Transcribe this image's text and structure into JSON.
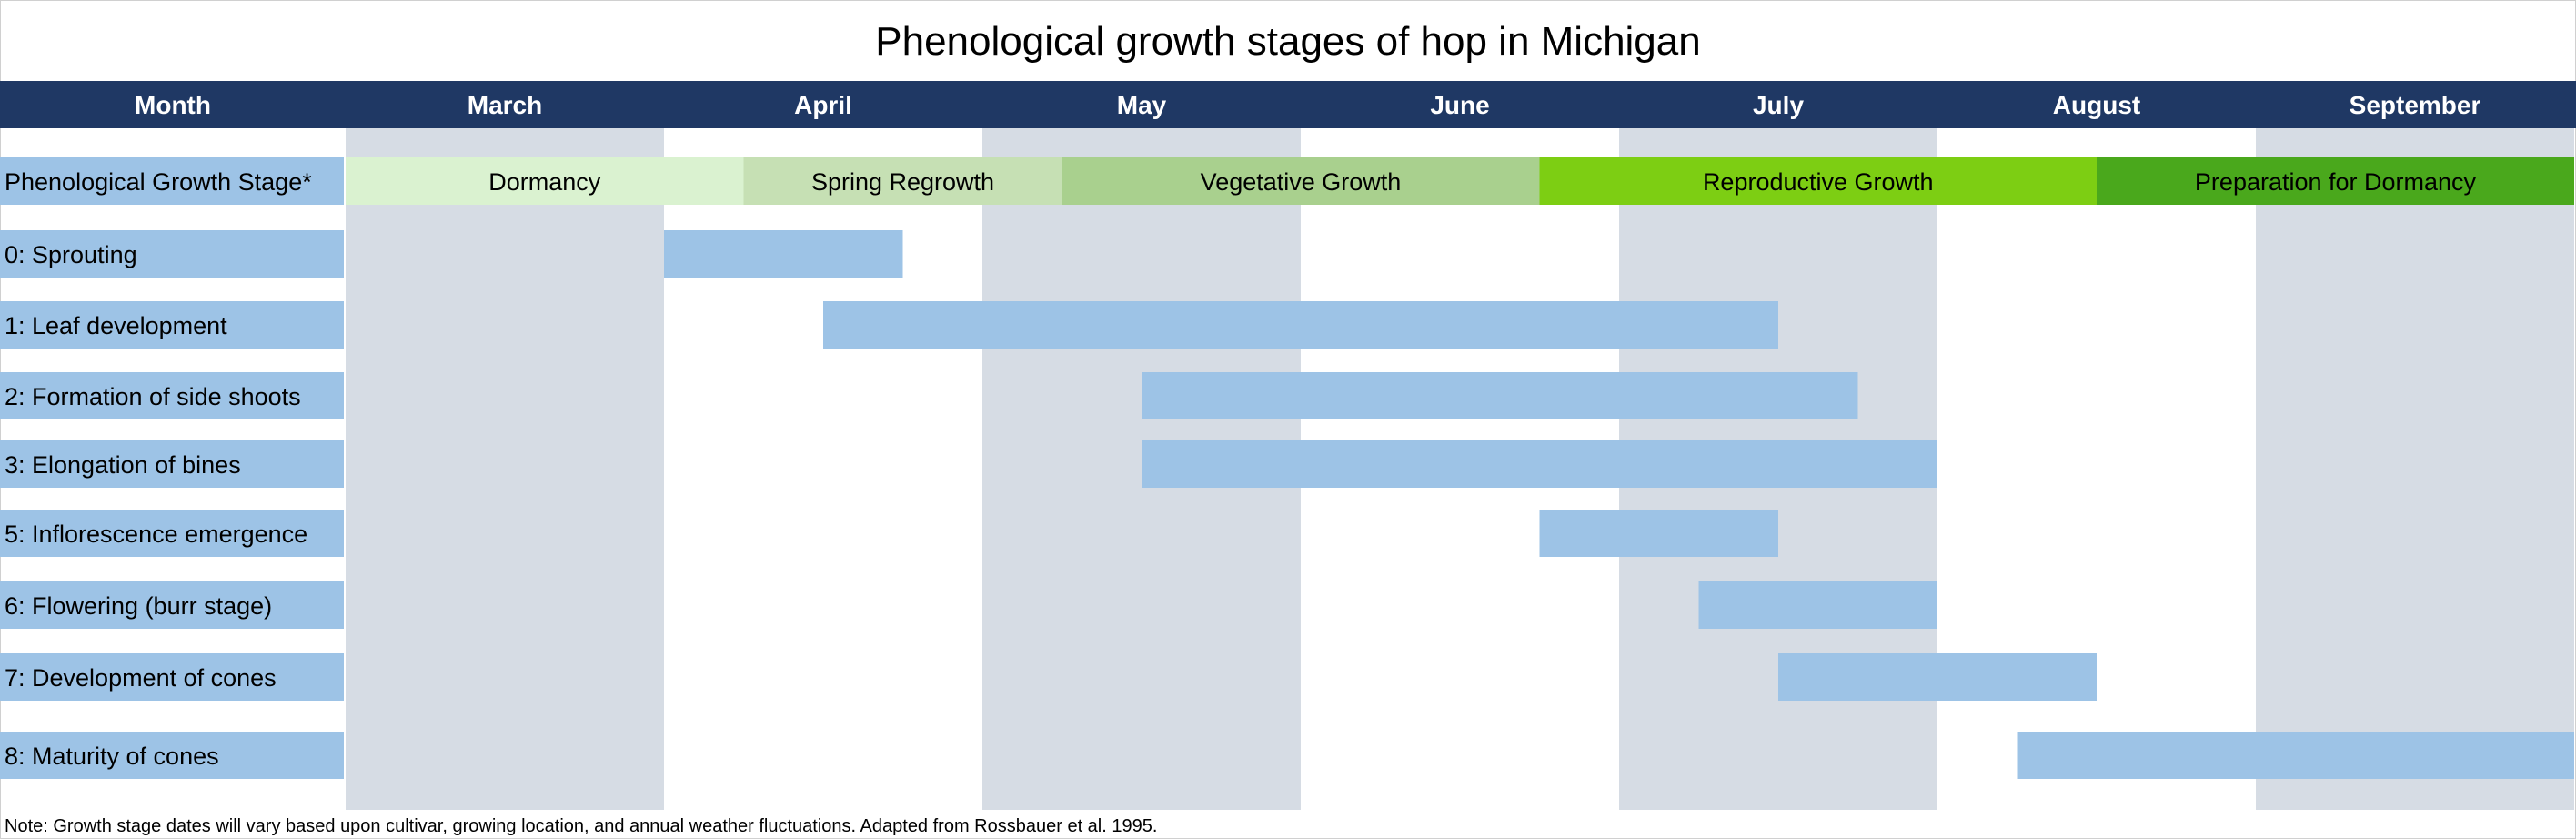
{
  "title": "Phenological growth stages of hop in Michigan",
  "header": {
    "month_label": "Month",
    "stage_label": "Phenological Growth Stage*"
  },
  "colors": {
    "header_bg": "#1f3864",
    "label_bg": "#9dc3e6",
    "bar": "#9dc3e6",
    "shade": "#d6dce4",
    "band_dormancy": "#daf2d0",
    "band_spring": "#c6e0b4",
    "band_vegetative": "#a9d08e",
    "band_reproductive": "#7dce13",
    "band_prep": "#4aa81c"
  },
  "chart_data": {
    "type": "gantt",
    "title": "Phenological growth stages of hop in Michigan",
    "unit": "month",
    "months": [
      "March",
      "April",
      "May",
      "June",
      "July",
      "August",
      "September"
    ],
    "shaded_months": [
      "March",
      "May",
      "July",
      "September"
    ],
    "growth_periods": [
      {
        "name": "Dormancy",
        "start": 0.0,
        "end": 1.25,
        "color": "#daf2d0"
      },
      {
        "name": "Spring Regrowth",
        "start": 1.25,
        "end": 2.25,
        "color": "#c6e0b4"
      },
      {
        "name": "Vegetative Growth",
        "start": 2.25,
        "end": 3.75,
        "color": "#a9d08e"
      },
      {
        "name": "Reproductive Growth",
        "start": 3.75,
        "end": 5.5,
        "color": "#7dce13"
      },
      {
        "name": "Preparation for Dormancy",
        "start": 5.5,
        "end": 7.0,
        "color": "#4aa81c"
      }
    ],
    "stages": [
      {
        "label": "0: Sprouting",
        "start": 1.0,
        "end": 1.75
      },
      {
        "label": "1: Leaf development",
        "start": 1.5,
        "end": 4.5
      },
      {
        "label": "2: Formation of side shoots",
        "start": 2.5,
        "end": 4.75
      },
      {
        "label": "3: Elongation of bines",
        "start": 2.5,
        "end": 5.0
      },
      {
        "label": "5: Inflorescence emergence",
        "start": 3.75,
        "end": 4.5
      },
      {
        "label": "6: Flowering (burr stage)",
        "start": 4.25,
        "end": 5.0
      },
      {
        "label": "7: Development of cones",
        "start": 4.5,
        "end": 5.5
      },
      {
        "label": "8: Maturity of cones",
        "start": 5.25,
        "end": 7.0
      }
    ],
    "note": "Note: Growth stage dates will vary based upon cultivar, growing location, and annual weather fluctuations. Adapted from Rossbauer et al. 1995."
  }
}
